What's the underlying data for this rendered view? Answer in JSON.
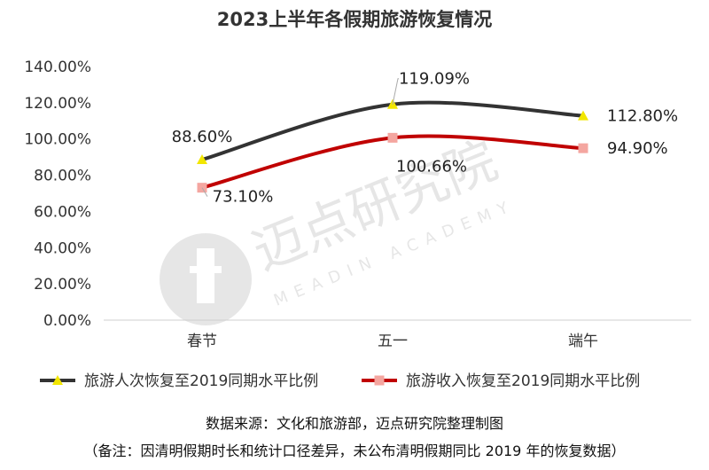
{
  "chart_data": {
    "type": "line",
    "title": "2023上半年各假期旅游恢复情况",
    "categories": [
      "春节",
      "五一",
      "端午"
    ],
    "series": [
      {
        "name": "旅游人次恢复至2019同期水平比例",
        "values": [
          88.6,
          119.09,
          112.8
        ],
        "labels": [
          "88.60%",
          "119.09%",
          "112.80%"
        ],
        "color": "#333333",
        "marker": "triangle",
        "marker_color": "#f2e600"
      },
      {
        "name": "旅游收入恢复至2019同期水平比例",
        "values": [
          73.1,
          100.66,
          94.9
        ],
        "labels": [
          "73.10%",
          "100.66%",
          "94.90%"
        ],
        "color": "#c00000",
        "marker": "square",
        "marker_color": "#f4a6a0"
      }
    ],
    "y_ticks": [
      "0.00%",
      "20.00%",
      "40.00%",
      "60.00%",
      "80.00%",
      "100.00%",
      "120.00%",
      "140.00%"
    ],
    "ylim": [
      0,
      140
    ],
    "grid": false,
    "legend_position": "bottom"
  },
  "source_note": "数据来源：文化和旅游部，迈点研究院整理制图",
  "remark_note": "（备注：因清明假期时长和统计口径差异，未公布清明假期同比 2019 年的恢复数据）",
  "watermark": {
    "text": "迈点研究院",
    "subtext": "MEADIN ACADEMY"
  }
}
